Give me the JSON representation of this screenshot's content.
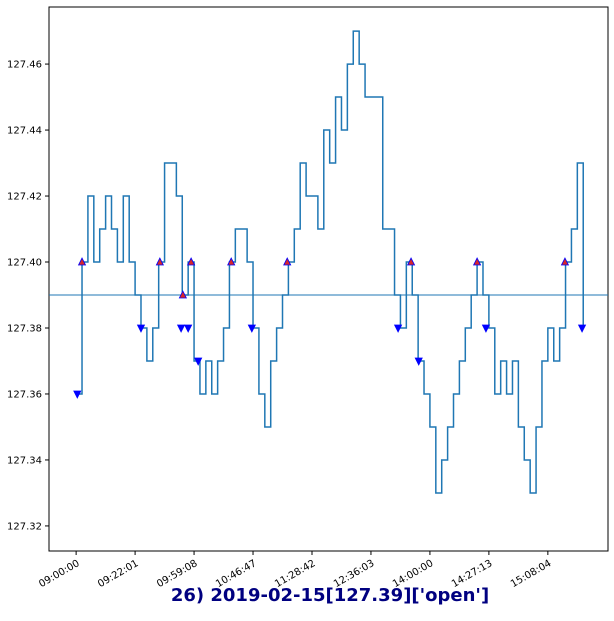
{
  "chart_data": {
    "type": "line",
    "title": "26) 2019-02-15[127.39]['open']",
    "xlim": [
      -46,
      902
    ],
    "ylim": [
      127.3124,
      127.4773
    ],
    "xticks": [
      {
        "value": 0,
        "label": "09:00:00"
      },
      {
        "value": 100,
        "label": "09:22:01"
      },
      {
        "value": 200,
        "label": "09:59:08"
      },
      {
        "value": 300,
        "label": "10:46:47"
      },
      {
        "value": 400,
        "label": "11:28:42"
      },
      {
        "value": 500,
        "label": "12:36:03"
      },
      {
        "value": 600,
        "label": "14:00:00"
      },
      {
        "value": 700,
        "label": "14:27:13"
      },
      {
        "value": 800,
        "label": "15:08:04"
      }
    ],
    "yticks": [
      {
        "value": 127.32,
        "label": "127.32"
      },
      {
        "value": 127.34,
        "label": "127.34"
      },
      {
        "value": 127.36,
        "label": "127.36"
      },
      {
        "value": 127.38,
        "label": "127.38"
      },
      {
        "value": 127.4,
        "label": "127.40"
      },
      {
        "value": 127.42,
        "label": "127.42"
      },
      {
        "value": 127.44,
        "label": "127.44"
      },
      {
        "value": 127.46,
        "label": "127.46"
      }
    ],
    "reference_line": {
      "value": 127.39,
      "color": "#1f77b4"
    },
    "series": [
      {
        "color": "#1f77b4",
        "step": true,
        "x": [
          0,
          10,
          20,
          30,
          40,
          50,
          60,
          70,
          80,
          90,
          100,
          110,
          120,
          130,
          140,
          150,
          160,
          170,
          180,
          190,
          200,
          210,
          220,
          230,
          240,
          250,
          260,
          270,
          280,
          290,
          300,
          310,
          320,
          330,
          340,
          350,
          360,
          370,
          380,
          390,
          400,
          410,
          420,
          430,
          440,
          450,
          460,
          470,
          480,
          490,
          500,
          510,
          520,
          530,
          540,
          550,
          560,
          570,
          580,
          590,
          600,
          610,
          620,
          630,
          640,
          650,
          660,
          670,
          680,
          690,
          700,
          710,
          720,
          730,
          740,
          750,
          760,
          770,
          780,
          790,
          800,
          810,
          820,
          830,
          840,
          850,
          860
        ],
        "values": [
          127.36,
          127.4,
          127.42,
          127.4,
          127.41,
          127.42,
          127.41,
          127.4,
          127.42,
          127.4,
          127.39,
          127.38,
          127.37,
          127.38,
          127.4,
          127.43,
          127.43,
          127.42,
          127.39,
          127.4,
          127.37,
          127.36,
          127.37,
          127.36,
          127.37,
          127.38,
          127.4,
          127.41,
          127.41,
          127.4,
          127.38,
          127.36,
          127.35,
          127.37,
          127.38,
          127.39,
          127.4,
          127.41,
          127.43,
          127.42,
          127.42,
          127.41,
          127.44,
          127.43,
          127.45,
          127.44,
          127.46,
          127.47,
          127.46,
          127.45,
          127.45,
          127.45,
          127.41,
          127.41,
          127.39,
          127.38,
          127.4,
          127.39,
          127.37,
          127.36,
          127.35,
          127.33,
          127.34,
          127.35,
          127.36,
          127.37,
          127.38,
          127.39,
          127.4,
          127.39,
          127.38,
          127.36,
          127.37,
          127.36,
          127.37,
          127.35,
          127.34,
          127.33,
          127.35,
          127.37,
          127.38,
          127.37,
          127.38,
          127.4,
          127.41,
          127.43,
          127.38
        ]
      },
      {
        "color": "#d62728",
        "marker": "up",
        "x": [
          10,
          142,
          181,
          195,
          263,
          358,
          568,
          680,
          829
        ],
        "values": [
          127.4,
          127.4,
          127.39,
          127.4,
          127.4,
          127.4,
          127.4,
          127.4,
          127.4
        ]
      },
      {
        "color": "#0000ff",
        "marker": "down",
        "x": [
          2,
          110,
          178,
          190,
          207,
          298,
          546,
          581,
          695,
          858
        ],
        "values": [
          127.36,
          127.38,
          127.38,
          127.38,
          127.37,
          127.38,
          127.38,
          127.37,
          127.38,
          127.38
        ]
      }
    ]
  }
}
